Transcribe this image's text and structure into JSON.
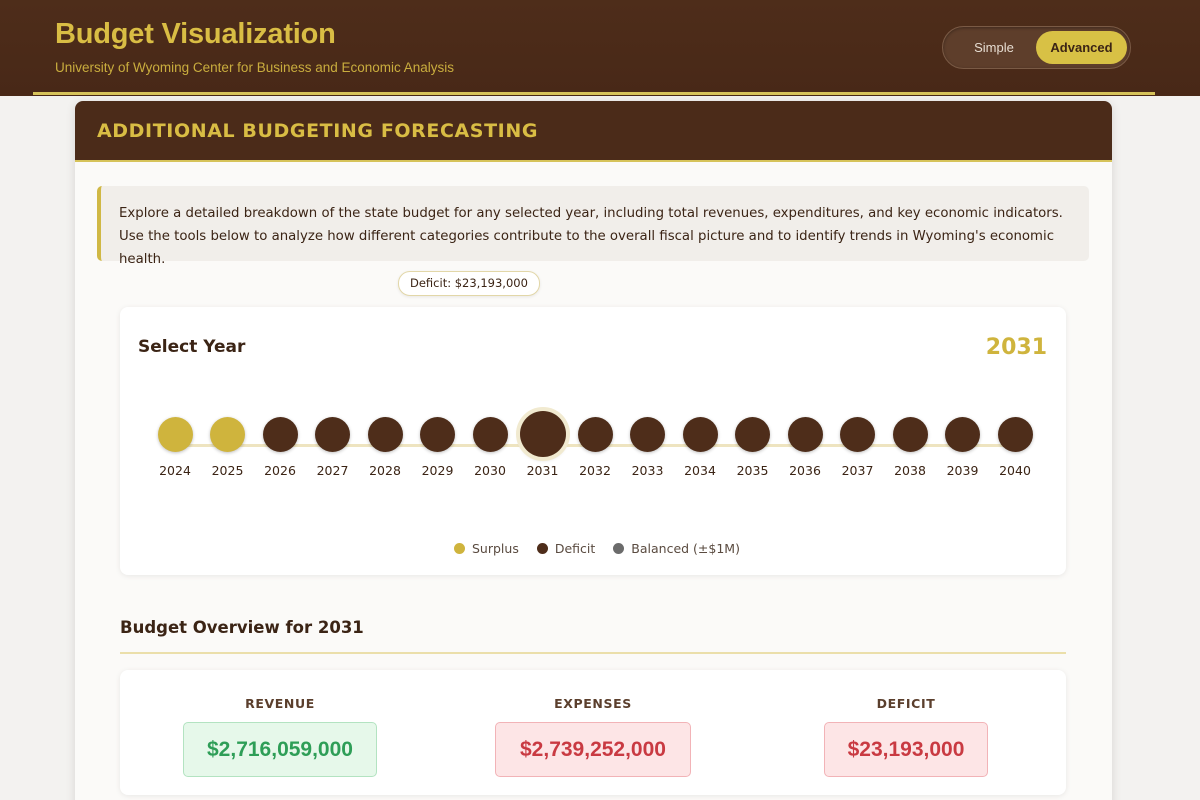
{
  "header": {
    "title": "Budget Visualization",
    "subtitle": "University of Wyoming Center for Business and Economic Analysis",
    "mode_toggle": {
      "options": [
        "Simple",
        "Advanced"
      ],
      "active": "Advanced"
    }
  },
  "panel": {
    "title": "ADDITIONAL BUDGETING FORECASTING",
    "intro": "Explore a detailed breakdown of the state budget for any selected year, including total revenues, expenditures, and key economic indicators. Use the tools below to analyze how different categories contribute to the overall fiscal picture and to identify trends in Wyoming's economic health."
  },
  "year_selector": {
    "title": "Select Year",
    "selected_year": "2031",
    "tooltip": "Deficit: $23,193,000",
    "years": [
      {
        "year": "2024",
        "status": "surplus"
      },
      {
        "year": "2025",
        "status": "surplus"
      },
      {
        "year": "2026",
        "status": "deficit"
      },
      {
        "year": "2027",
        "status": "deficit"
      },
      {
        "year": "2028",
        "status": "deficit"
      },
      {
        "year": "2029",
        "status": "deficit"
      },
      {
        "year": "2030",
        "status": "deficit"
      },
      {
        "year": "2031",
        "status": "deficit"
      },
      {
        "year": "2032",
        "status": "deficit"
      },
      {
        "year": "2033",
        "status": "deficit"
      },
      {
        "year": "2034",
        "status": "deficit"
      },
      {
        "year": "2035",
        "status": "deficit"
      },
      {
        "year": "2036",
        "status": "deficit"
      },
      {
        "year": "2037",
        "status": "deficit"
      },
      {
        "year": "2038",
        "status": "deficit"
      },
      {
        "year": "2039",
        "status": "deficit"
      },
      {
        "year": "2040",
        "status": "deficit"
      }
    ],
    "legend": [
      {
        "label": "Surplus",
        "color": "#cfb43d"
      },
      {
        "label": "Deficit",
        "color": "#4e2d1a"
      },
      {
        "label": "Balanced (±$1M)",
        "color": "#6b6b6b"
      }
    ]
  },
  "overview": {
    "title": "Budget Overview for 2031",
    "metrics": [
      {
        "label": "REVENUE",
        "value": "$2,716,059,000",
        "tone": "positive"
      },
      {
        "label": "EXPENSES",
        "value": "$2,739,252,000",
        "tone": "negative"
      },
      {
        "label": "DEFICIT",
        "value": "$23,193,000",
        "tone": "negative"
      }
    ]
  },
  "colors": {
    "brand_brown": "#4e2d1a",
    "brand_gold": "#d9bd44",
    "surplus": "#cfb43d",
    "deficit": "#4e2d1a",
    "positive_text": "#2e9e57",
    "negative_text": "#c93a42"
  }
}
